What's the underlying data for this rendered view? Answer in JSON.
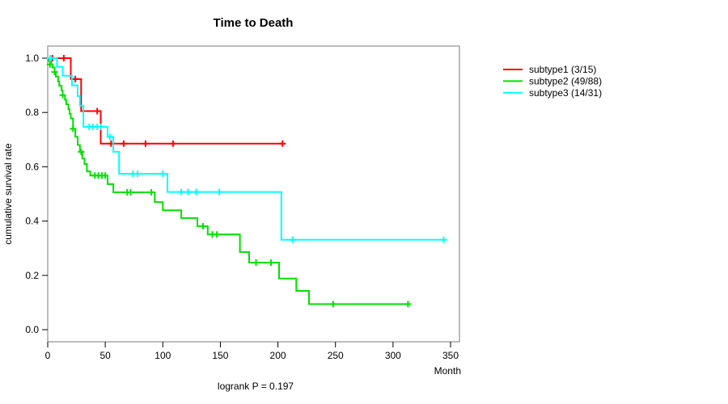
{
  "chart_data": {
    "type": "line",
    "variant": "kaplan-meier-step",
    "title": "Time to Death",
    "xlabel": "Month",
    "ylabel": "cumulative survival rate",
    "annotation": "logrank P = 0.197",
    "xlim": [
      0,
      360
    ],
    "xticks": [
      0,
      50,
      100,
      150,
      200,
      250,
      300,
      350
    ],
    "ylim": [
      0,
      1
    ],
    "yticks": [
      0.0,
      0.2,
      0.4,
      0.6,
      0.8,
      1.0
    ],
    "grid": false,
    "legend_position": "right",
    "axis_color": "#000000",
    "box_color": "#7a7a7a",
    "series": [
      {
        "name": "subtype1 (3/15)",
        "color": "#ff0000",
        "steps": [
          [
            0,
            1.0
          ],
          [
            20,
            0.923
          ],
          [
            29,
            0.805
          ],
          [
            46,
            0.685
          ]
        ],
        "end_month": 204,
        "censors": [
          [
            4,
            1.0
          ],
          [
            14,
            1.0
          ],
          [
            24,
            0.923
          ],
          [
            43,
            0.805
          ],
          [
            55,
            0.685
          ],
          [
            66,
            0.685
          ],
          [
            85,
            0.685
          ],
          [
            109,
            0.685
          ],
          [
            204,
            0.685
          ]
        ]
      },
      {
        "name": "subtype2 (49/88)",
        "color": "#00e000",
        "steps": [
          [
            0,
            1.0
          ],
          [
            1,
            0.989
          ],
          [
            3,
            0.977
          ],
          [
            4,
            0.966
          ],
          [
            6,
            0.949
          ],
          [
            7,
            0.932
          ],
          [
            9,
            0.915
          ],
          [
            10,
            0.898
          ],
          [
            12,
            0.881
          ],
          [
            13,
            0.864
          ],
          [
            15,
            0.847
          ],
          [
            16,
            0.83
          ],
          [
            18,
            0.812
          ],
          [
            19,
            0.795
          ],
          [
            20,
            0.778
          ],
          [
            22,
            0.74
          ],
          [
            24,
            0.71
          ],
          [
            26,
            0.68
          ],
          [
            28,
            0.655
          ],
          [
            30,
            0.63
          ],
          [
            32,
            0.61
          ],
          [
            34,
            0.583
          ],
          [
            37,
            0.568
          ],
          [
            52,
            0.536
          ],
          [
            57,
            0.506
          ],
          [
            93,
            0.47
          ],
          [
            100,
            0.44
          ],
          [
            116,
            0.411
          ],
          [
            130,
            0.381
          ],
          [
            139,
            0.351
          ],
          [
            167,
            0.286
          ],
          [
            175,
            0.247
          ],
          [
            201,
            0.188
          ],
          [
            216,
            0.143
          ],
          [
            227,
            0.094
          ]
        ],
        "end_month": 313,
        "censors": [
          [
            2,
            0.977
          ],
          [
            6,
            0.949
          ],
          [
            13,
            0.864
          ],
          [
            22,
            0.74
          ],
          [
            29,
            0.655
          ],
          [
            41,
            0.568
          ],
          [
            44,
            0.568
          ],
          [
            47,
            0.568
          ],
          [
            50,
            0.568
          ],
          [
            69,
            0.506
          ],
          [
            72,
            0.506
          ],
          [
            90,
            0.506
          ],
          [
            135,
            0.381
          ],
          [
            143,
            0.351
          ],
          [
            147,
            0.351
          ],
          [
            181,
            0.247
          ],
          [
            194,
            0.247
          ],
          [
            248,
            0.094
          ],
          [
            313,
            0.094
          ]
        ]
      },
      {
        "name": "subtype3 (14/31)",
        "color": "#00ffff",
        "steps": [
          [
            0,
            1.0
          ],
          [
            8,
            0.968
          ],
          [
            13,
            0.935
          ],
          [
            21,
            0.9
          ],
          [
            26,
            0.86
          ],
          [
            28,
            0.825
          ],
          [
            31,
            0.747
          ],
          [
            52,
            0.71
          ],
          [
            57,
            0.655
          ],
          [
            62,
            0.574
          ],
          [
            104,
            0.507
          ],
          [
            203,
            0.331
          ]
        ],
        "end_month": 344,
        "censors": [
          [
            2,
            1.0
          ],
          [
            36,
            0.747
          ],
          [
            39,
            0.747
          ],
          [
            43,
            0.747
          ],
          [
            46,
            0.747
          ],
          [
            54,
            0.71
          ],
          [
            74,
            0.574
          ],
          [
            78,
            0.574
          ],
          [
            100,
            0.574
          ],
          [
            116,
            0.507
          ],
          [
            122,
            0.507
          ],
          [
            129,
            0.507
          ],
          [
            149,
            0.507
          ],
          [
            213,
            0.331
          ],
          [
            344,
            0.331
          ]
        ]
      }
    ]
  }
}
